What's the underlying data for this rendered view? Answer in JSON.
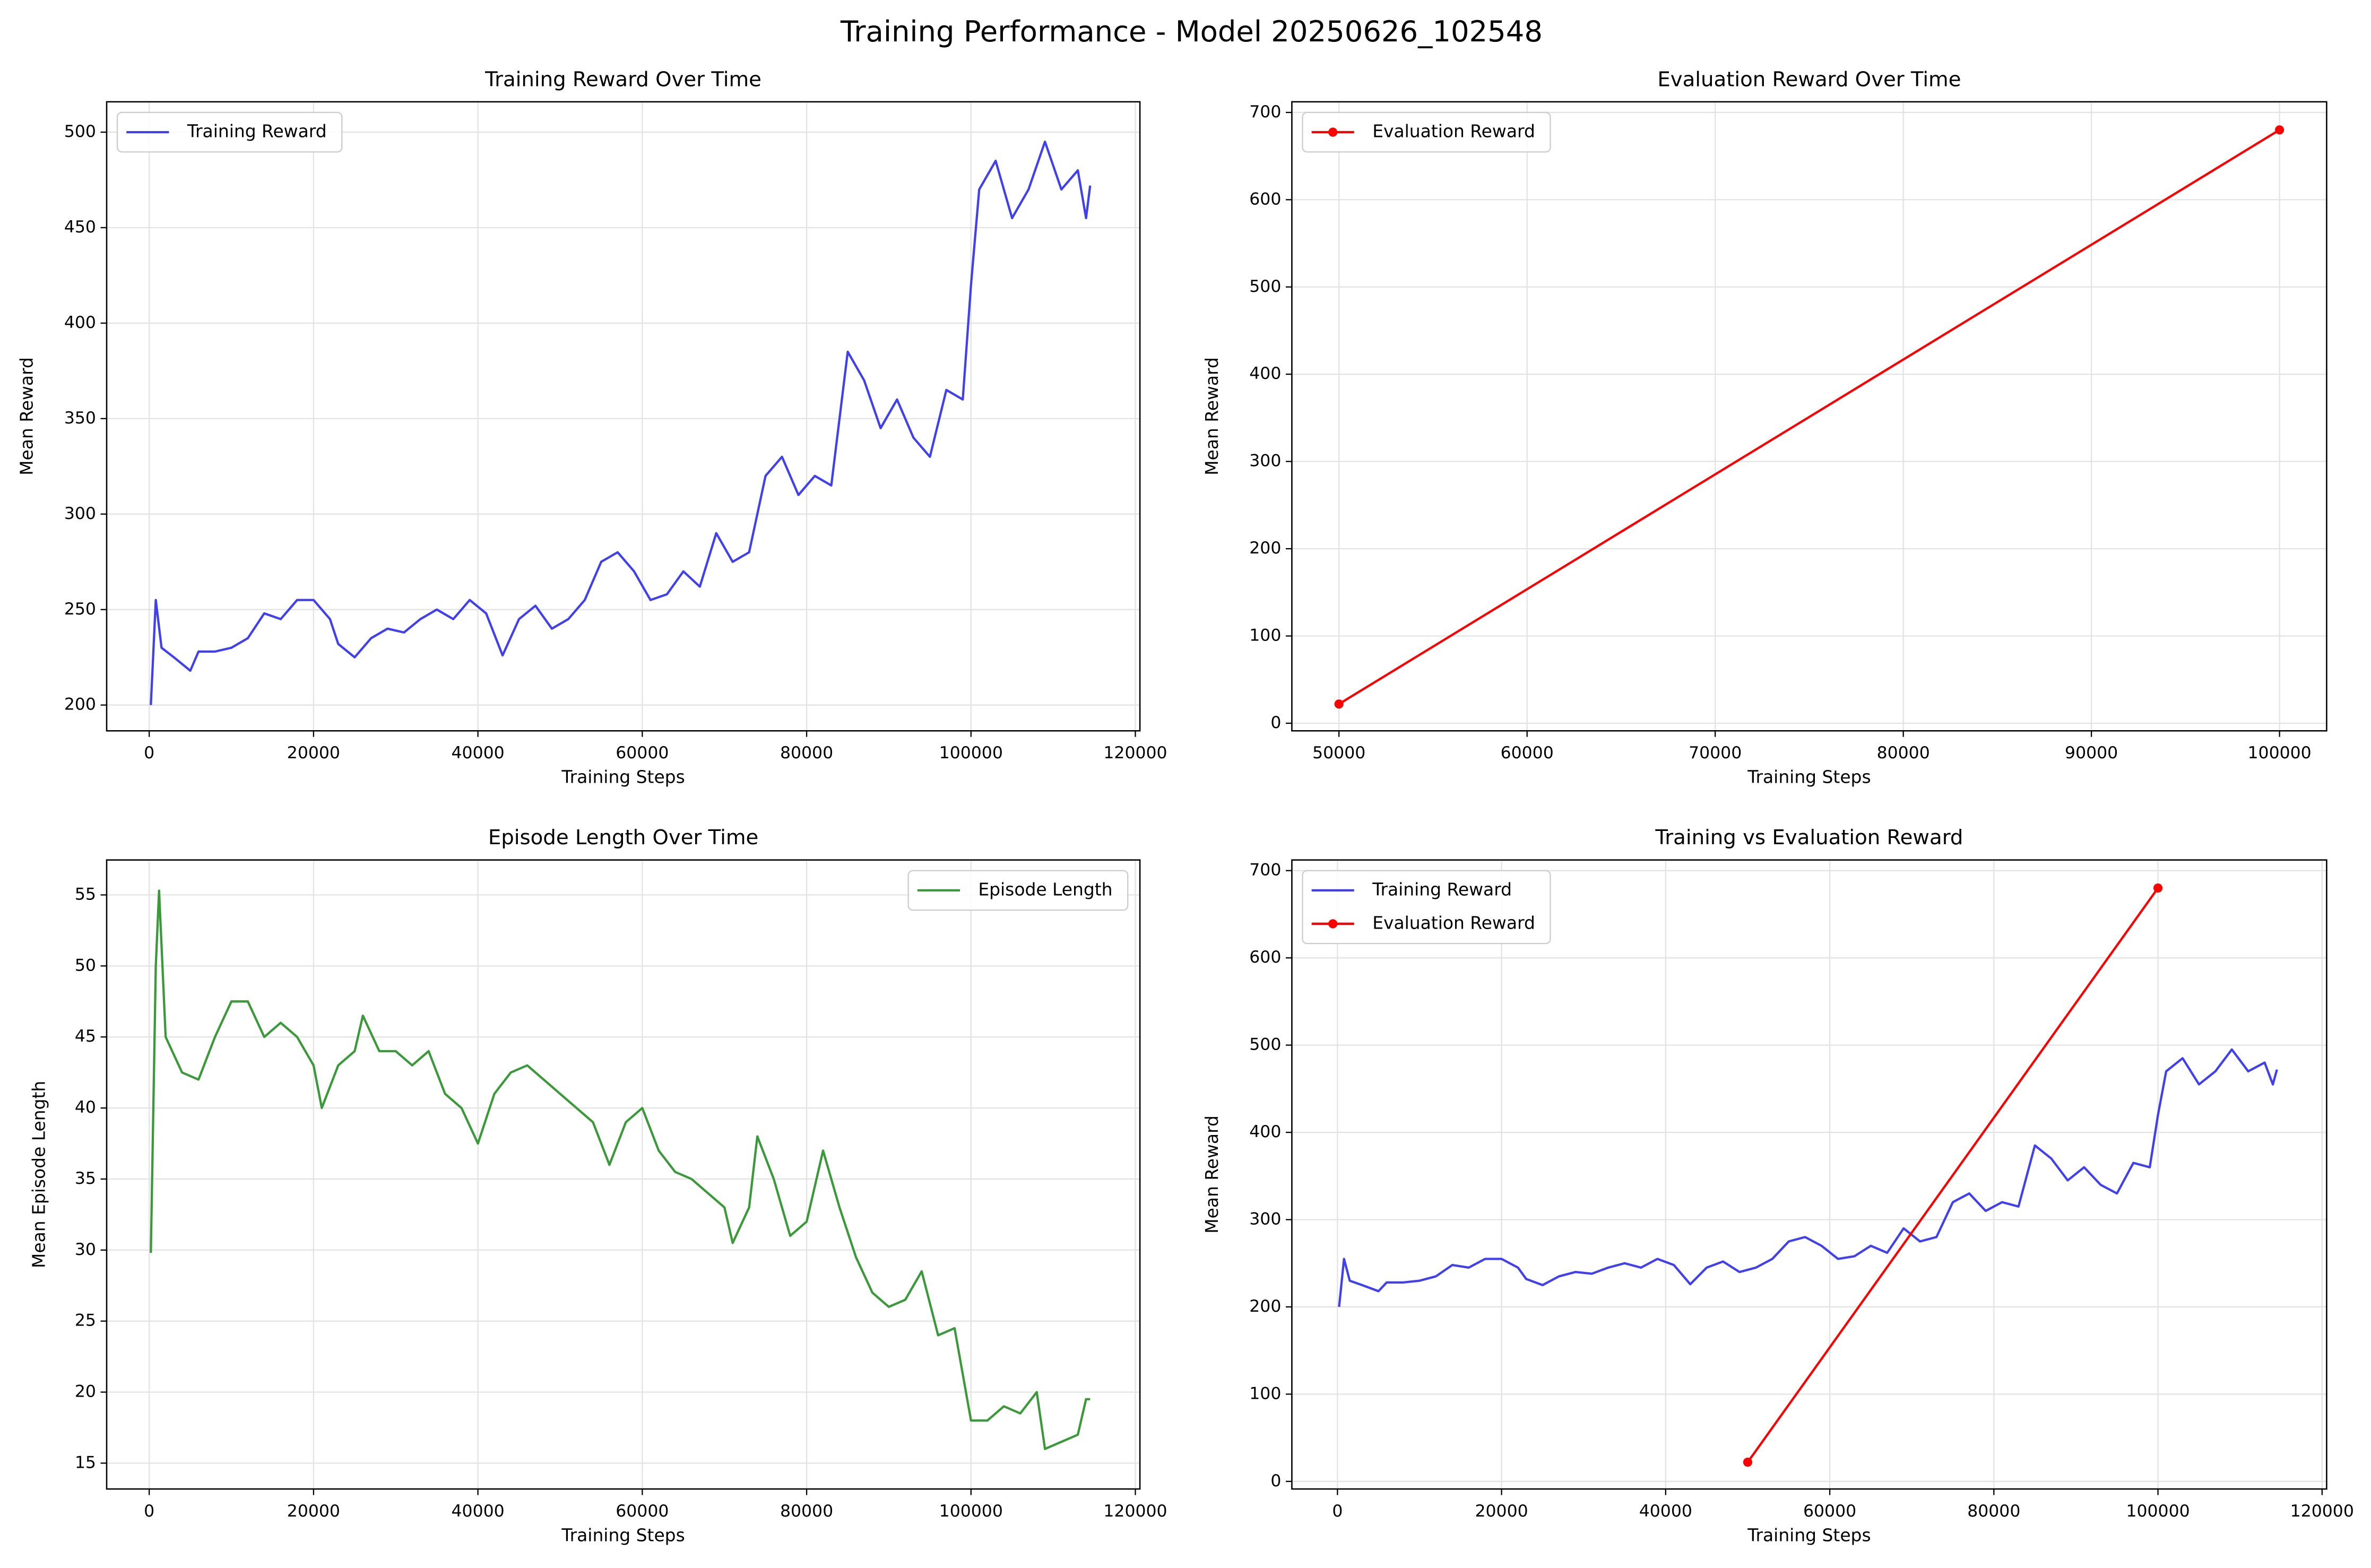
{
  "title": "Training Performance - Model 20250626_102548",
  "chart_data": [
    {
      "type": "line",
      "title": "Training Reward Over Time",
      "xlabel": "Training Steps",
      "ylabel": "Mean Reward",
      "xlim": [
        -5177,
        120555
      ],
      "ylim": [
        186.5,
        515.9
      ],
      "xticks": [
        0,
        20000,
        40000,
        60000,
        80000,
        100000,
        120000
      ],
      "yticks": [
        200,
        250,
        300,
        350,
        400,
        450,
        500
      ],
      "grid": true,
      "legend": "upper left",
      "series": [
        {
          "name": "Training Reward",
          "color": "#4040f0",
          "marker": false,
          "x": [
            200,
            800,
            1500,
            3000,
            5000,
            6000,
            8000,
            10000,
            12000,
            14000,
            16000,
            18000,
            20000,
            22000,
            23000,
            25000,
            27000,
            29000,
            31000,
            33000,
            35000,
            37000,
            39000,
            41000,
            43000,
            45000,
            47000,
            49000,
            51000,
            53000,
            55000,
            57000,
            59000,
            61000,
            63000,
            65000,
            67000,
            69000,
            71000,
            73000,
            75000,
            77000,
            79000,
            81000,
            83000,
            85000,
            87000,
            89000,
            91000,
            93000,
            95000,
            97000,
            99000,
            100000,
            101000,
            103000,
            105000,
            107000,
            109000,
            111000,
            113000,
            114000,
            114500
          ],
          "values": [
            200,
            255,
            230,
            225,
            218,
            228,
            228,
            230,
            235,
            248,
            245,
            255,
            255,
            245,
            232,
            225,
            235,
            240,
            238,
            245,
            250,
            245,
            255,
            248,
            226,
            245,
            252,
            240,
            245,
            255,
            275,
            280,
            270,
            255,
            258,
            270,
            262,
            290,
            275,
            280,
            320,
            330,
            310,
            320,
            315,
            385,
            370,
            345,
            360,
            340,
            330,
            365,
            360,
            420,
            470,
            485,
            455,
            470,
            495,
            470,
            480,
            455,
            472
          ]
        }
      ]
    },
    {
      "type": "line",
      "title": "Evaluation Reward Over Time",
      "xlabel": "Training Steps",
      "ylabel": "Mean Reward",
      "xlim": [
        47496,
        102504
      ],
      "ylim": [
        -8.7,
        712.2
      ],
      "xticks": [
        50000,
        60000,
        70000,
        80000,
        90000,
        100000
      ],
      "yticks": [
        0,
        100,
        200,
        300,
        400,
        500,
        600,
        700
      ],
      "grid": true,
      "legend": "upper left",
      "series": [
        {
          "name": "Evaluation Reward",
          "color": "#ff0000",
          "marker": true,
          "x": [
            50000,
            100000
          ],
          "values": [
            22,
            680
          ]
        }
      ]
    },
    {
      "type": "line",
      "title": "Episode Length Over Time",
      "xlabel": "Training Steps",
      "ylabel": "Mean Episode Length",
      "xlim": [
        -5177,
        120555
      ],
      "ylim": [
        13.18,
        57.46
      ],
      "xticks": [
        0,
        20000,
        40000,
        60000,
        80000,
        100000,
        120000
      ],
      "yticks": [
        15,
        20,
        25,
        30,
        35,
        40,
        45,
        50,
        55
      ],
      "grid": true,
      "legend": "upper right",
      "series": [
        {
          "name": "Episode Length",
          "color": "#3a9a3a",
          "marker": false,
          "x": [
            200,
            800,
            1200,
            2000,
            4000,
            6000,
            8000,
            10000,
            12000,
            14000,
            16000,
            18000,
            20000,
            21000,
            23000,
            25000,
            26000,
            28000,
            30000,
            32000,
            34000,
            36000,
            38000,
            40000,
            42000,
            44000,
            46000,
            48000,
            50000,
            52000,
            54000,
            56000,
            58000,
            60000,
            62000,
            64000,
            66000,
            68000,
            70000,
            71000,
            73000,
            74000,
            76000,
            78000,
            80000,
            82000,
            84000,
            86000,
            88000,
            90000,
            92000,
            94000,
            96000,
            98000,
            100000,
            102000,
            104000,
            106000,
            108000,
            109000,
            111000,
            113000,
            114000,
            114500
          ],
          "values": [
            29.8,
            50,
            55.3,
            45,
            42.5,
            42,
            45,
            47.5,
            47.5,
            45,
            46,
            45,
            43,
            40,
            43,
            44,
            46.5,
            44,
            44,
            43,
            44,
            41,
            40,
            37.5,
            41,
            42.5,
            43,
            42,
            41,
            40,
            39,
            36,
            39,
            40,
            37,
            35.5,
            35,
            34,
            33,
            30.5,
            33,
            38,
            35,
            31,
            32,
            37,
            33,
            29.5,
            27,
            26,
            26.5,
            28.5,
            24,
            24.5,
            18,
            18,
            19,
            18.5,
            20,
            16,
            16.5,
            17,
            19.5,
            19.5
          ]
        }
      ]
    },
    {
      "type": "line",
      "title": "Training vs Evaluation Reward",
      "xlabel": "Training Steps",
      "ylabel": "Mean Reward",
      "xlim": [
        -5556,
        120556
      ],
      "ylim": [
        -8.7,
        712.2
      ],
      "xticks": [
        0,
        20000,
        40000,
        60000,
        80000,
        100000,
        120000
      ],
      "yticks": [
        0,
        100,
        200,
        300,
        400,
        500,
        600,
        700
      ],
      "grid": true,
      "legend": "upper left",
      "series": [
        {
          "name": "Training Reward",
          "color": "#4040f0",
          "marker": false,
          "x": [
            200,
            800,
            1500,
            3000,
            5000,
            6000,
            8000,
            10000,
            12000,
            14000,
            16000,
            18000,
            20000,
            22000,
            23000,
            25000,
            27000,
            29000,
            31000,
            33000,
            35000,
            37000,
            39000,
            41000,
            43000,
            45000,
            47000,
            49000,
            51000,
            53000,
            55000,
            57000,
            59000,
            61000,
            63000,
            65000,
            67000,
            69000,
            71000,
            73000,
            75000,
            77000,
            79000,
            81000,
            83000,
            85000,
            87000,
            89000,
            91000,
            93000,
            95000,
            97000,
            99000,
            100000,
            101000,
            103000,
            105000,
            107000,
            109000,
            111000,
            113000,
            114000,
            114500
          ],
          "values": [
            200,
            255,
            230,
            225,
            218,
            228,
            228,
            230,
            235,
            248,
            245,
            255,
            255,
            245,
            232,
            225,
            235,
            240,
            238,
            245,
            250,
            245,
            255,
            248,
            226,
            245,
            252,
            240,
            245,
            255,
            275,
            280,
            270,
            255,
            258,
            270,
            262,
            290,
            275,
            280,
            320,
            330,
            310,
            320,
            315,
            385,
            370,
            345,
            360,
            340,
            330,
            365,
            360,
            420,
            470,
            485,
            455,
            470,
            495,
            470,
            480,
            455,
            472
          ]
        },
        {
          "name": "Evaluation Reward",
          "color": "#ff0000",
          "marker": true,
          "x": [
            50000,
            100000
          ],
          "values": [
            22,
            680
          ]
        }
      ]
    }
  ]
}
